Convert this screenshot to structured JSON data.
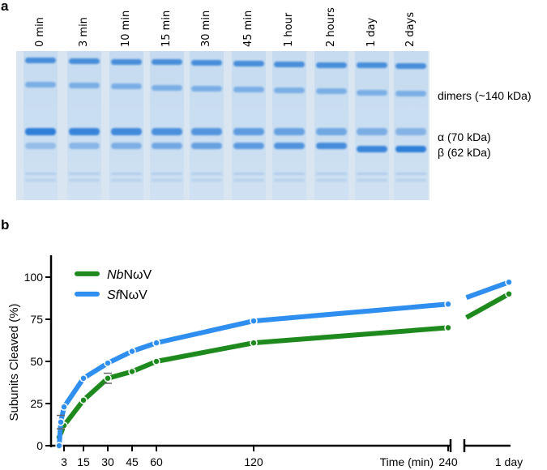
{
  "panel_a": {
    "letter": "a",
    "lanes": [
      "0 min",
      "3 min",
      "10 min",
      "15 min",
      "30 min",
      "45 min",
      "1 hour",
      "2 hours",
      "1 day",
      "2 days"
    ],
    "band_labels": {
      "dimers": "dimers (~140 kDa)",
      "alpha": "α (70 kDa)",
      "beta": "β (62 kDa)"
    }
  },
  "panel_b": {
    "letter": "b"
  },
  "chart_data": {
    "type": "line",
    "title": "",
    "xlabel": "Time (min)",
    "ylabel": "Subunits Cleaved (%)",
    "ylim": [
      0,
      115
    ],
    "yticks": [
      0,
      25,
      50,
      75,
      100
    ],
    "xticks": [
      {
        "v": 3,
        "label": "3"
      },
      {
        "v": 15,
        "label": "15"
      },
      {
        "v": 30,
        "label": "30"
      },
      {
        "v": 45,
        "label": "45"
      },
      {
        "v": 60,
        "label": "60"
      },
      {
        "v": 120,
        "label": "120"
      },
      {
        "v": 240,
        "label": "240"
      }
    ],
    "break_label": "1 day",
    "legend_placement": "top-left",
    "series": [
      {
        "name_italic": "Nb",
        "name_rest": "NωV",
        "color": "#1e8a1e",
        "x": [
          0,
          3,
          15,
          30,
          45,
          60,
          120,
          240,
          "1 day"
        ],
        "values": [
          5,
          12,
          27,
          40,
          44,
          50,
          61,
          70,
          90
        ],
        "errors": [
          {
            "x": 30,
            "low": 37,
            "high": 43
          }
        ]
      },
      {
        "name_italic": "Sf",
        "name_rest": "NωV",
        "color": "#2f8ff0",
        "x": [
          0,
          1,
          3,
          15,
          30,
          45,
          60,
          120,
          240,
          "1 day"
        ],
        "values": [
          0,
          14,
          23,
          40,
          49,
          56,
          61,
          74,
          84,
          97
        ],
        "errors": [
          {
            "x": 1,
            "low": 10,
            "high": 18
          }
        ]
      }
    ]
  }
}
